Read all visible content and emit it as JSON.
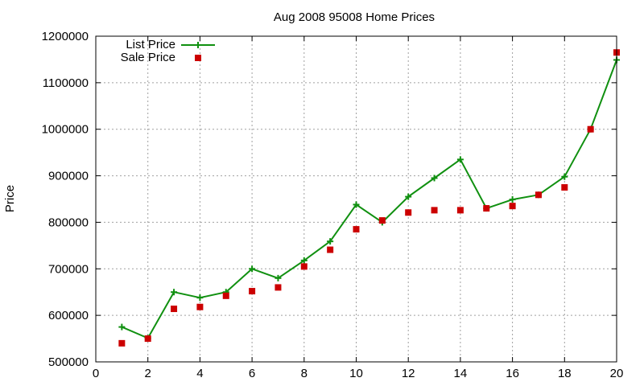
{
  "chart_data": {
    "type": "line",
    "title": "Aug 2008 95008 Home Prices",
    "xlabel": "",
    "ylabel": "Price",
    "xlim": [
      0,
      20
    ],
    "ylim": [
      500000,
      1200000
    ],
    "x_ticks": [
      0,
      2,
      4,
      6,
      8,
      10,
      12,
      14,
      16,
      18,
      20
    ],
    "y_ticks": [
      500000,
      600000,
      700000,
      800000,
      900000,
      1000000,
      1100000,
      1200000
    ],
    "grid": true,
    "legend_position": "top-left",
    "series": [
      {
        "name": "List Price",
        "style": "line-with-plus-markers",
        "color": "#109010",
        "x": [
          1,
          2,
          3,
          4,
          5,
          6,
          7,
          8,
          9,
          10,
          11,
          12,
          13,
          14,
          15,
          16,
          17,
          18,
          19,
          20
        ],
        "values": [
          575000,
          551000,
          650000,
          638000,
          650000,
          700000,
          680000,
          718000,
          759000,
          838000,
          800000,
          855000,
          895000,
          935000,
          830000,
          849000,
          859000,
          898000,
          1000000,
          1149000
        ]
      },
      {
        "name": "Sale Price",
        "style": "square-markers",
        "color": "#cc0000",
        "x": [
          1,
          2,
          3,
          4,
          5,
          6,
          7,
          8,
          9,
          10,
          11,
          12,
          13,
          14,
          15,
          16,
          17,
          18,
          19,
          20
        ],
        "values": [
          540000,
          550000,
          614000,
          618000,
          642000,
          652000,
          660000,
          705000,
          741000,
          785000,
          804000,
          821000,
          826000,
          826000,
          830000,
          835000,
          859000,
          875000,
          1000000,
          1165000
        ]
      }
    ]
  }
}
